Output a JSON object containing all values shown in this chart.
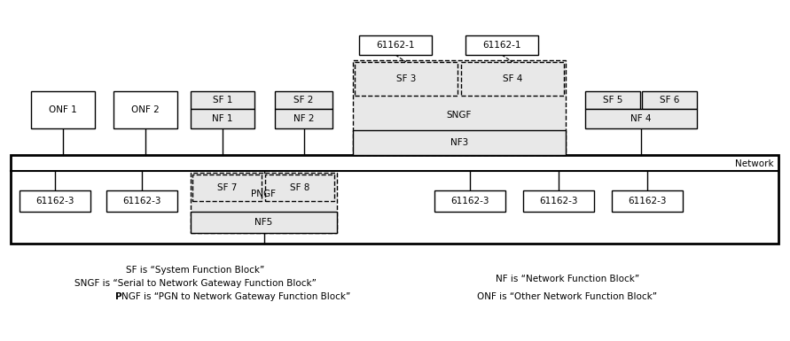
{
  "fig_width": 8.91,
  "fig_height": 3.85,
  "bg_color": "#ffffff",
  "legend_left": [
    "SF is “System Function Block”",
    "SNGF is “Serial to Network Gateway Function Block”",
    "PNGF is “PGN to Network Gateway Function Block”"
  ],
  "legend_right": [
    "NF is “Network Function Block”",
    "ONF is “Other Network Function Block”"
  ]
}
